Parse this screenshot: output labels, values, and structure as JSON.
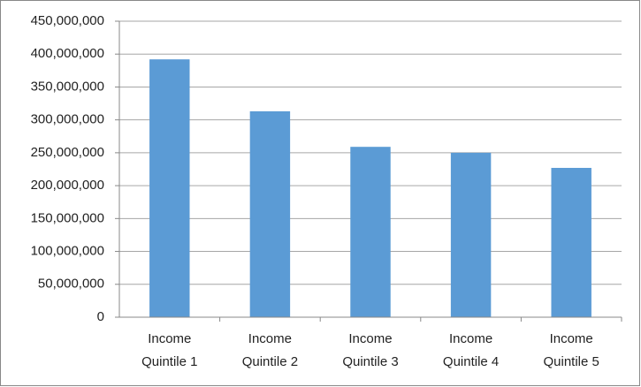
{
  "chart_data": {
    "type": "bar",
    "categories": [
      "Income Quintile 1",
      "Income Quintile 2",
      "Income Quintile 3",
      "Income Quintile 4",
      "Income Quintile 5"
    ],
    "values": [
      392000000,
      313000000,
      259000000,
      250000000,
      227000000
    ],
    "color": "#5b9bd5",
    "ylim": [
      0,
      450000000
    ],
    "yticks": [
      0,
      {
        "value": 50000000,
        "label": "50,000,000"
      },
      {
        "value": 100000000,
        "label": "100,000,000"
      },
      {
        "value": 150000000,
        "label": "150,000,000"
      },
      {
        "value": 200000000,
        "label": "200,000,000"
      },
      {
        "value": 250000000,
        "label": "250,000,000"
      },
      {
        "value": 300000000,
        "label": "300,000,000"
      },
      {
        "value": 350000000,
        "label": "350,000,000"
      },
      {
        "value": 400000000,
        "label": "400,000,000"
      },
      {
        "value": 450000000,
        "label": "450,000,000"
      }
    ],
    "grid": true
  }
}
